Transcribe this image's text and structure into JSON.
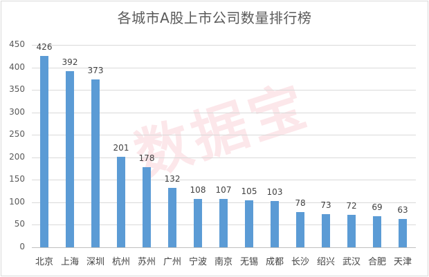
{
  "chart_data": {
    "type": "bar",
    "title": "各城市A股上市公司数量排行榜",
    "categories": [
      "北京",
      "上海",
      "深圳",
      "杭州",
      "苏州",
      "广州",
      "宁波",
      "南京",
      "无锡",
      "成都",
      "长沙",
      "绍兴",
      "武汉",
      "合肥",
      "天津"
    ],
    "values": [
      426,
      392,
      373,
      201,
      178,
      132,
      108,
      107,
      105,
      103,
      78,
      73,
      72,
      69,
      63
    ],
    "xlabel": "",
    "ylabel": "",
    "ylim": [
      0,
      450
    ],
    "yticks": [
      0,
      50,
      100,
      150,
      200,
      250,
      300,
      350,
      400,
      450
    ],
    "grid": true,
    "legend": "none",
    "data_labels": true,
    "bar_color": "#5b9bd5",
    "watermark": "数据宝"
  }
}
